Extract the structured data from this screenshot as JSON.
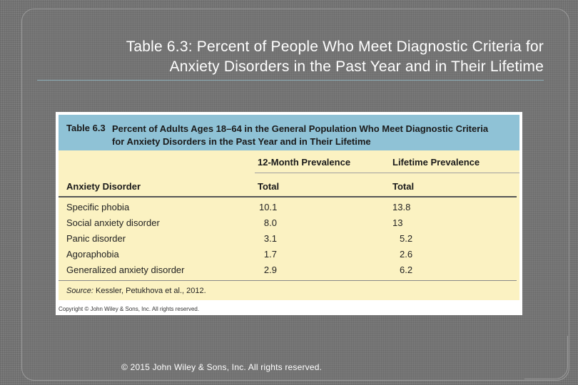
{
  "slide": {
    "title_line1": "Table 6.3: Percent of People Who Meet Diagnostic Criteria for",
    "title_line2": "Anxiety Disorders in the Past Year and in Their Lifetime",
    "footer": "© 2015 John Wiley & Sons, Inc. All rights reserved."
  },
  "table": {
    "number": "Table 6.3",
    "caption_line1": "Percent of Adults Ages 18–64 in the General Population Who Meet Diagnostic Criteria",
    "caption_line2": "for Anxiety Disorders in the Past Year and in Their Lifetime",
    "group_headers": [
      "12-Month Prevalence",
      "Lifetime Prevalence"
    ],
    "column_headers": [
      "Anxiety Disorder",
      "Total",
      "Total"
    ],
    "rows": [
      {
        "disorder": "Specific phobia",
        "month12": "10.1",
        "lifetime": "13.8"
      },
      {
        "disorder": "Social anxiety disorder",
        "month12": "8.0",
        "lifetime": "13"
      },
      {
        "disorder": "Panic disorder",
        "month12": "3.1",
        "lifetime": "5.2"
      },
      {
        "disorder": "Agoraphobia",
        "month12": "1.7",
        "lifetime": "2.6"
      },
      {
        "disorder": "Generalized anxiety disorder",
        "month12": "2.9",
        "lifetime": "6.2"
      }
    ],
    "source_label": "Source:",
    "source_text": "Kessler, Petukhova et al., 2012.",
    "copyright": "Copyright © John Wiley & Sons, Inc. All rights reserved."
  }
}
